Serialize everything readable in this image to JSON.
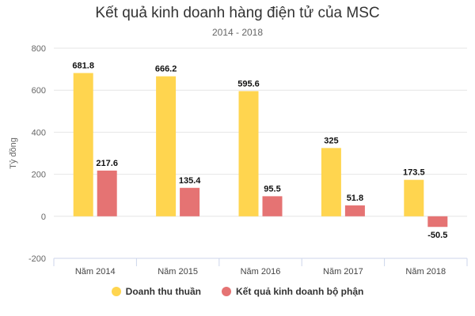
{
  "chart_data": {
    "type": "bar",
    "title": "Kết quả kinh doanh hàng điện tử của MSC",
    "subtitle": "2014 - 2018",
    "ylabel": "Tỷ đồng",
    "xlabel": "",
    "ylim": [
      -200,
      800
    ],
    "yticks": [
      "-200",
      "0",
      "200",
      "400",
      "600",
      "800"
    ],
    "grid": true,
    "legend_position": "bottom",
    "categories": [
      "Năm 2014",
      "Năm 2015",
      "Năm 2016",
      "Năm 2017",
      "Năm 2018"
    ],
    "series": [
      {
        "name": "Doanh thu thuần",
        "color": "#ffd54f",
        "values": [
          681.8,
          666.2,
          595.6,
          325,
          173.5
        ],
        "labels": [
          "681.8",
          "666.2",
          "595.6",
          "325",
          "173.5"
        ]
      },
      {
        "name": "Kết quả kinh doanh bộ phận",
        "color": "#e57373",
        "values": [
          217.6,
          135.4,
          95.5,
          51.8,
          -50.5
        ],
        "labels": [
          "217.6",
          "135.4",
          "95.5",
          "51.8",
          "-50.5"
        ]
      }
    ]
  }
}
